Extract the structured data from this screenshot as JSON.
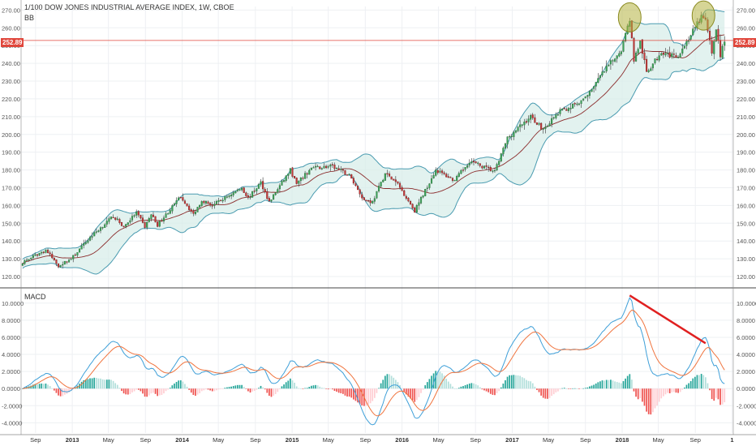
{
  "header": {
    "title": "1/100 DOW JONES INDUSTRIAL AVERAGE INDEX, 1W, CBOE",
    "indicator": "BB"
  },
  "macd_panel": {
    "title": "MACD"
  },
  "last_price": {
    "value": "252.89"
  },
  "colors": {
    "up": "#26a69a",
    "down": "#ef5350",
    "bb_band": "#4a9bb0",
    "bb_fill": "#d6ece8",
    "basis": "#8b2c2c",
    "macd": "#3d9fd8",
    "signal": "#f0743e",
    "price_line": "#e0463b",
    "highlight": "#b5b33f",
    "trendline": "#e02020"
  },
  "chart_data": [
    {
      "type": "candlestick",
      "title": "1/100 DOW JONES INDUSTRIAL AVERAGE INDEX, 1W, CBOE",
      "overlay": "Bollinger Bands",
      "ylim": [
        115,
        272
      ],
      "y_ticks": [
        "120.00",
        "130.00",
        "140.00",
        "150.00",
        "160.00",
        "170.00",
        "180.00",
        "190.00",
        "200.00",
        "210.00",
        "220.00",
        "230.00",
        "240.00",
        "250.00",
        "260.00",
        "270.00"
      ],
      "x_ticks": [
        "Sep",
        "2013",
        "May",
        "Sep",
        "2014",
        "May",
        "Sep",
        "2015",
        "May",
        "Sep",
        "2016",
        "May",
        "Sep",
        "2017",
        "May",
        "Sep",
        "2018",
        "May",
        "Sep",
        "1"
      ],
      "x_tick_dates": [
        "2012-09-01",
        "2013-01-01",
        "2013-05-01",
        "2013-09-01",
        "2014-01-01",
        "2014-05-01",
        "2014-09-01",
        "2015-01-01",
        "2015-05-01",
        "2015-09-01",
        "2016-01-01",
        "2016-05-01",
        "2016-09-01",
        "2017-01-01",
        "2017-05-01",
        "2017-09-01",
        "2018-01-01",
        "2018-05-01",
        "2018-09-01",
        "2019-01-01"
      ],
      "x_range": [
        "2012-07-15",
        "2019-01-05"
      ],
      "close_keypoints": [
        [
          "2012-07-20",
          128
        ],
        [
          "2012-10-05",
          135
        ],
        [
          "2012-11-16",
          126
        ],
        [
          "2012-12-28",
          130
        ],
        [
          "2013-03-01",
          142
        ],
        [
          "2013-05-17",
          154
        ],
        [
          "2013-06-21",
          148
        ],
        [
          "2013-08-02",
          156
        ],
        [
          "2013-08-30",
          148
        ],
        [
          "2013-09-20",
          155
        ],
        [
          "2013-10-11",
          149
        ],
        [
          "2013-12-27",
          165
        ],
        [
          "2014-02-07",
          155
        ],
        [
          "2014-03-07",
          163
        ],
        [
          "2014-04-11",
          160
        ],
        [
          "2014-07-18",
          170
        ],
        [
          "2014-08-08",
          164
        ],
        [
          "2014-09-19",
          173
        ],
        [
          "2014-10-17",
          162
        ],
        [
          "2014-12-26",
          180
        ],
        [
          "2015-01-16",
          172
        ],
        [
          "2015-03-06",
          181
        ],
        [
          "2015-05-15",
          182
        ],
        [
          "2015-07-10",
          177
        ],
        [
          "2015-08-28",
          163
        ],
        [
          "2015-09-25",
          162
        ],
        [
          "2015-11-06",
          178
        ],
        [
          "2015-12-18",
          172
        ],
        [
          "2016-02-12",
          157
        ],
        [
          "2016-04-22",
          180
        ],
        [
          "2016-06-24",
          174
        ],
        [
          "2016-08-12",
          185
        ],
        [
          "2016-11-04",
          179
        ],
        [
          "2016-12-16",
          198
        ],
        [
          "2017-03-03",
          210
        ],
        [
          "2017-04-14",
          203
        ],
        [
          "2017-06-09",
          213
        ],
        [
          "2017-08-18",
          218
        ],
        [
          "2017-10-27",
          234
        ],
        [
          "2017-12-29",
          248
        ],
        [
          "2018-01-26",
          265
        ],
        [
          "2018-02-09",
          242
        ],
        [
          "2018-03-02",
          252
        ],
        [
          "2018-03-23",
          235
        ],
        [
          "2018-04-27",
          243
        ],
        [
          "2018-05-11",
          247
        ],
        [
          "2018-06-29",
          243
        ],
        [
          "2018-08-10",
          254
        ],
        [
          "2018-09-21",
          266
        ],
        [
          "2018-10-05",
          264
        ],
        [
          "2018-10-26",
          246
        ],
        [
          "2018-11-09",
          260
        ],
        [
          "2018-11-23",
          244
        ],
        [
          "2018-12-07",
          252.89
        ]
      ],
      "highlights": [
        {
          "date": "2018-01-26",
          "price": 265
        },
        {
          "date": "2018-09-28",
          "price": 266
        }
      ],
      "last_price": 252.89
    },
    {
      "type": "line+bar",
      "title": "MACD",
      "ylim": [
        -5.2,
        11.5
      ],
      "y_ticks": [
        "-4.0000",
        "-2.0000",
        "0.0000",
        "2.0000",
        "4.0000",
        "6.0000",
        "8.0000",
        "10.0000"
      ],
      "series": [
        {
          "name": "",
          "role": "macd"
        },
        {
          "name": "",
          "role": "signal"
        },
        {
          "name": "",
          "role": "histogram"
        }
      ],
      "trendline": [
        [
          "2018-01-26",
          10.9
        ],
        [
          "2018-10-05",
          5.3
        ]
      ]
    }
  ]
}
